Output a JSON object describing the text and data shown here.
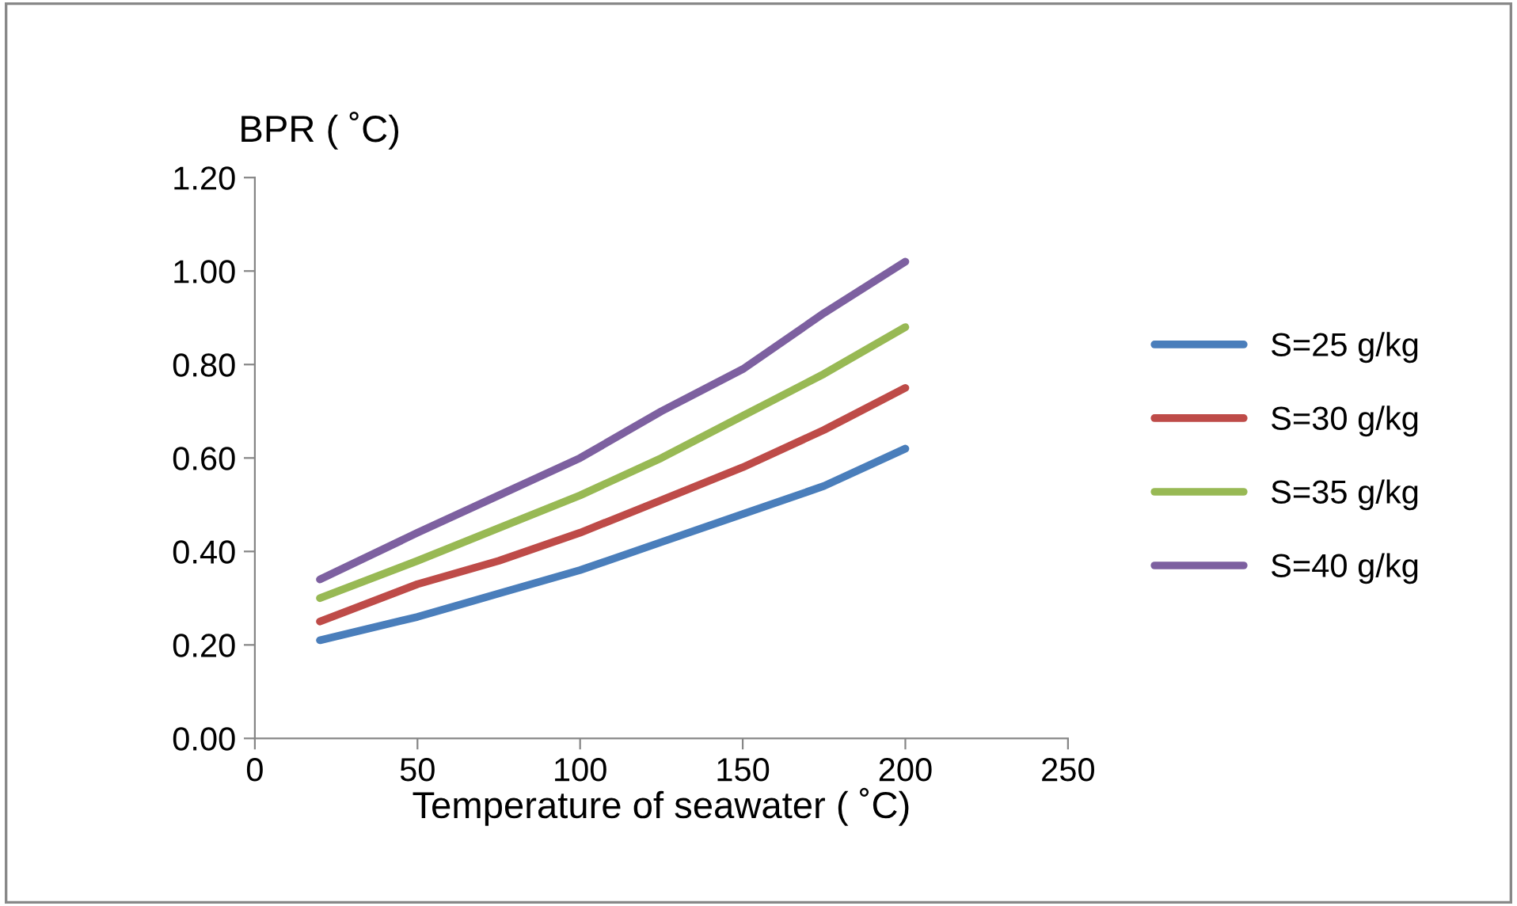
{
  "chart_data": {
    "type": "line",
    "xlabel": "Temperature of seawater ( ˚C)",
    "ylabel": "BPR ( ˚C)",
    "x": [
      20,
      50,
      75,
      100,
      125,
      150,
      175,
      200
    ],
    "series": [
      {
        "name": "S=25 g/kg",
        "color": "#4a7ebb",
        "values": [
          0.21,
          0.26,
          0.31,
          0.36,
          0.42,
          0.48,
          0.54,
          0.62
        ]
      },
      {
        "name": "S=30 g/kg",
        "color": "#be4b48",
        "values": [
          0.25,
          0.33,
          0.38,
          0.44,
          0.51,
          0.58,
          0.66,
          0.75
        ]
      },
      {
        "name": "S=35 g/kg",
        "color": "#98b954",
        "values": [
          0.3,
          0.38,
          0.45,
          0.52,
          0.6,
          0.69,
          0.78,
          0.88
        ]
      },
      {
        "name": "S=40 g/kg",
        "color": "#7d60a0",
        "values": [
          0.34,
          0.44,
          0.52,
          0.6,
          0.7,
          0.79,
          0.91,
          1.02
        ]
      }
    ],
    "xlim": [
      0,
      250
    ],
    "xticks": [
      0,
      50,
      100,
      150,
      200,
      250
    ],
    "ylim": [
      0,
      1.2
    ],
    "yticks": [
      {
        "value": 0,
        "label": "0.00"
      },
      {
        "value": 0.2,
        "label": "0.20"
      },
      {
        "value": 0.4,
        "label": "0.40"
      },
      {
        "value": 0.6,
        "label": "0.60"
      },
      {
        "value": 0.8,
        "label": "0.80"
      },
      {
        "value": 1.0,
        "label": "1.00"
      },
      {
        "value": 1.2,
        "label": "1.20"
      }
    ],
    "grid": false,
    "legend": "right",
    "marker": "none",
    "line_style": "solid"
  }
}
